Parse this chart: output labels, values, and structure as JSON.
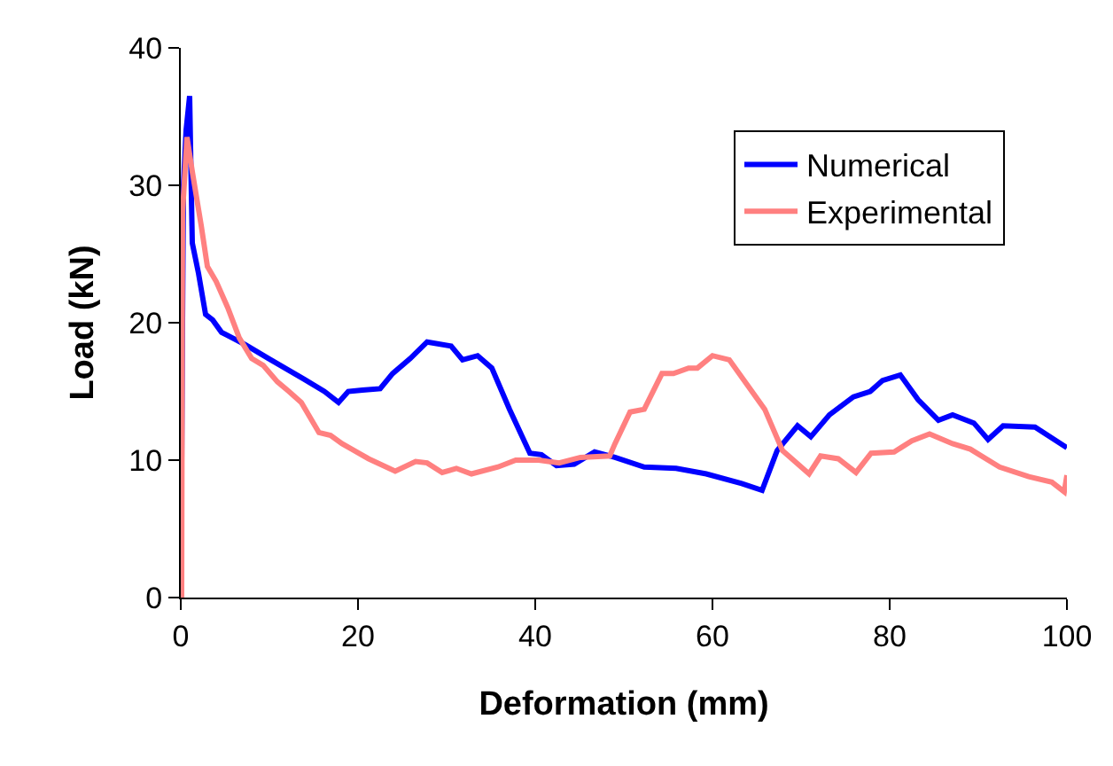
{
  "chart_data": {
    "type": "line",
    "xlabel": "Deformation (mm)",
    "ylabel": "Load (kN)",
    "xlim": [
      0,
      100
    ],
    "xticks": [
      0,
      20,
      40,
      60,
      80,
      100
    ],
    "ylim": [
      0,
      40
    ],
    "yticks": [
      0,
      10,
      20,
      30,
      40
    ],
    "legend": "top right",
    "marker": "none",
    "line_style": "solid",
    "series": [
      {
        "name": "Numerical",
        "color": "#0000ff",
        "x": [
          0,
          0.3,
          0.6,
          1.0,
          1.2,
          1.3,
          2.0,
          2.8,
          3.6,
          4.6,
          7.3,
          9.9,
          13.9,
          16.2,
          17.8,
          18.9,
          20.5,
          22.5,
          23.9,
          25.9,
          27.8,
          30.5,
          31.8,
          33.5,
          35.1,
          37.1,
          39.4,
          40.7,
          42.4,
          44.4,
          46.7,
          49.0,
          52.3,
          55.9,
          59.3,
          63.3,
          65.6,
          67.3,
          69.6,
          71.1,
          73.2,
          75.9,
          77.8,
          79.2,
          81.2,
          83.2,
          85.5,
          87.1,
          89.5,
          91.1,
          92.8,
          96.4,
          100
        ],
        "values": [
          0,
          30,
          34,
          36.5,
          29.2,
          25.8,
          23.6,
          20.6,
          20.2,
          19.3,
          18.4,
          17.4,
          15.9,
          15.0,
          14.2,
          15.0,
          15.1,
          15.2,
          16.3,
          17.4,
          18.6,
          18.3,
          17.3,
          17.6,
          16.7,
          13.7,
          10.5,
          10.4,
          9.6,
          9.7,
          10.6,
          10.2,
          9.5,
          9.4,
          9.0,
          8.3,
          7.8,
          10.7,
          12.5,
          11.7,
          13.3,
          14.6,
          15.0,
          15.8,
          16.2,
          14.4,
          12.9,
          13.3,
          12.7,
          11.5,
          12.5,
          12.4,
          10.9
        ]
      },
      {
        "name": "Experimental",
        "color": "#ff8080",
        "x": [
          0.1,
          0.2,
          0.7,
          1.3,
          2.3,
          3.0,
          4.0,
          5.3,
          6.6,
          8.0,
          9.3,
          10.9,
          12.2,
          13.6,
          15.6,
          16.9,
          18.2,
          21.2,
          24.2,
          26.5,
          27.8,
          29.5,
          31.1,
          32.8,
          35.8,
          37.8,
          40.4,
          42.7,
          45.1,
          48.4,
          49.0,
          50.7,
          52.3,
          54.3,
          55.6,
          57.3,
          58.3,
          60.0,
          61.9,
          63.9,
          65.9,
          67.9,
          70.9,
          72.2,
          74.2,
          76.2,
          77.9,
          80.5,
          82.5,
          84.5,
          87.1,
          89.1,
          92.4,
          95.7,
          98.3,
          99.7,
          100
        ],
        "values": [
          0,
          28,
          33.5,
          31.0,
          27.1,
          24.1,
          23.0,
          21.1,
          18.9,
          17.4,
          16.9,
          15.7,
          15.0,
          14.2,
          12.0,
          11.8,
          11.2,
          10.1,
          9.2,
          9.9,
          9.8,
          9.1,
          9.4,
          9.0,
          9.5,
          10.0,
          10.0,
          9.8,
          10.2,
          10.3,
          11.2,
          13.5,
          13.7,
          16.3,
          16.3,
          16.7,
          16.7,
          17.6,
          17.3,
          15.5,
          13.7,
          10.7,
          9.0,
          10.3,
          10.1,
          9.1,
          10.5,
          10.6,
          11.4,
          11.9,
          11.2,
          10.8,
          9.5,
          8.8,
          8.4,
          7.7,
          8.9
        ]
      }
    ]
  }
}
